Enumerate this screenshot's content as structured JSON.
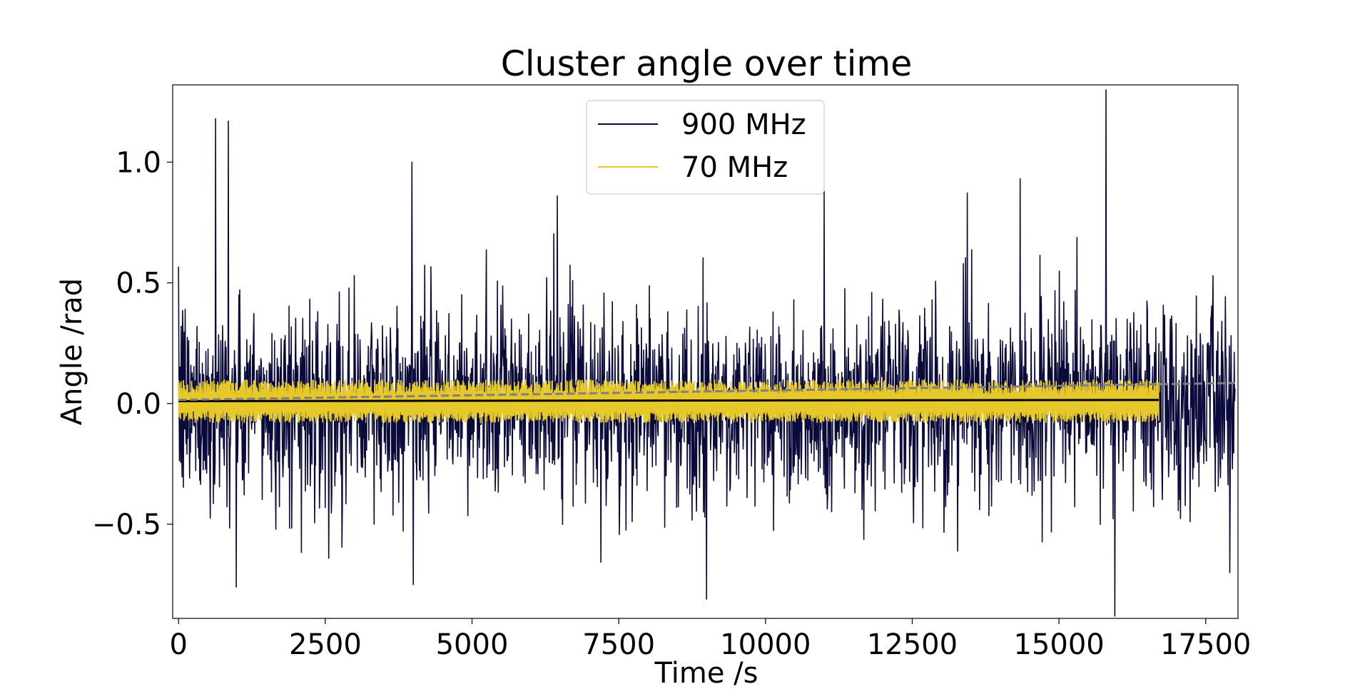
{
  "chart_data": {
    "type": "line",
    "title": "Cluster angle over time",
    "xlabel": "Time /s",
    "ylabel": "Angle /rad",
    "xlim": [
      -100,
      18050
    ],
    "ylim": [
      -0.89,
      1.32
    ],
    "x_ticks": [
      0,
      2500,
      5000,
      7500,
      10000,
      12500,
      15000,
      17500
    ],
    "x_tick_labels": [
      "0",
      "2500",
      "5000",
      "7500",
      "10000",
      "12500",
      "15000",
      "17500"
    ],
    "y_ticks": [
      -0.5,
      0.0,
      0.5,
      1.0
    ],
    "y_tick_labels": [
      "−0.5",
      "0.0",
      "0.5",
      "1.0"
    ],
    "legend_position": "upper-center",
    "series": [
      {
        "name": "900 MHz",
        "color": "#0b0b3b",
        "x_range": [
          0,
          18000
        ],
        "n_points": 2400,
        "noise_std": 0.2,
        "notable_peaks": [
          {
            "x": 630,
            "y": 1.18
          },
          {
            "x": 850,
            "y": 1.17
          },
          {
            "x": 980,
            "y": -0.76
          },
          {
            "x": 3980,
            "y": 1.0
          },
          {
            "x": 4000,
            "y": -0.75
          },
          {
            "x": 6450,
            "y": 0.86
          },
          {
            "x": 9000,
            "y": -0.81
          },
          {
            "x": 11000,
            "y": 0.88
          },
          {
            "x": 15800,
            "y": 1.3
          },
          {
            "x": 15950,
            "y": -0.88
          }
        ]
      },
      {
        "name": "70 MHz",
        "color": "#e6c82a",
        "x_range": [
          0,
          16700
        ],
        "n_points": 2400,
        "band_low": -0.08,
        "band_high": 0.1
      }
    ],
    "trend_lines": [
      {
        "name": "mean 70 MHz",
        "style": "solid",
        "color": "#000000",
        "x": [
          0,
          16700
        ],
        "y": [
          0.01,
          0.015
        ]
      },
      {
        "name": "trend 900 MHz",
        "style": "dashed",
        "color": "#808080",
        "x": [
          0,
          18000
        ],
        "y": [
          0.015,
          0.085
        ]
      }
    ]
  }
}
